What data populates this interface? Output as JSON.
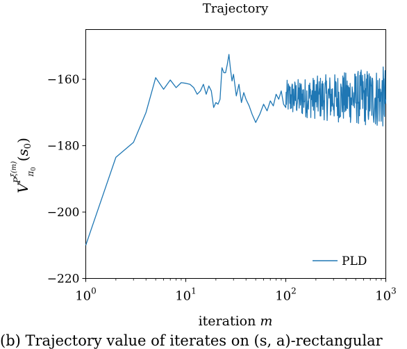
{
  "chart_data": {
    "type": "line",
    "title": "Trajectory",
    "xlabel": "iteration m",
    "ylabel": "V^{P^{ξ(m)}}_{π0}(s0)",
    "xscale": "log",
    "xlim": [
      1,
      1000
    ],
    "ylim": [
      -220,
      -145
    ],
    "xticks": [
      {
        "value": 1,
        "base": "10",
        "exp": "0"
      },
      {
        "value": 10,
        "base": "10",
        "exp": "1"
      },
      {
        "value": 100,
        "base": "10",
        "exp": "2"
      },
      {
        "value": 1000,
        "base": "10",
        "exp": "3"
      }
    ],
    "yticks": [
      {
        "value": -220,
        "label": "−220"
      },
      {
        "value": -200,
        "label": "−200"
      },
      {
        "value": -180,
        "label": "−180"
      },
      {
        "value": -160,
        "label": "−160"
      }
    ],
    "grid": false,
    "legend_position": "lower-right",
    "series": [
      {
        "name": "PLD",
        "color": "#1f77b4",
        "x": [
          1,
          2,
          3,
          4,
          5,
          6,
          7,
          8,
          9,
          10,
          11,
          12,
          13,
          14,
          15,
          16,
          17,
          18,
          19,
          20,
          21,
          22,
          23,
          24,
          25,
          26,
          27,
          28,
          29,
          30,
          32,
          34,
          36,
          38,
          40,
          43,
          46,
          50,
          55,
          60,
          65,
          70,
          75,
          80,
          85,
          90,
          95,
          100
        ],
        "y": [
          -210,
          -183.5,
          -179,
          -170,
          -159.5,
          -163,
          -160.2,
          -162.5,
          -161,
          -161.2,
          -161.5,
          -162.5,
          -164.5,
          -163.5,
          -161.5,
          -164.5,
          -162,
          -163.5,
          -168.5,
          -167,
          -167.5,
          -166,
          -156.5,
          -158,
          -158,
          -155.5,
          -152.5,
          -157,
          -160.5,
          -158.5,
          -165,
          -161.5,
          -167,
          -164,
          -166,
          -168,
          -170.5,
          -173,
          -170.5,
          -167.5,
          -169.5,
          -166.5,
          -168,
          -164.5,
          -166,
          -163.5,
          -167.5,
          -168.5
        ]
      }
    ],
    "noise_segment": {
      "x_start": 100,
      "x_end": 1000,
      "center": -165.5,
      "amplitude": 9.5,
      "count": 300
    }
  },
  "caption": "(b) Trajectory value of iterates on (s, a)-rectangular"
}
